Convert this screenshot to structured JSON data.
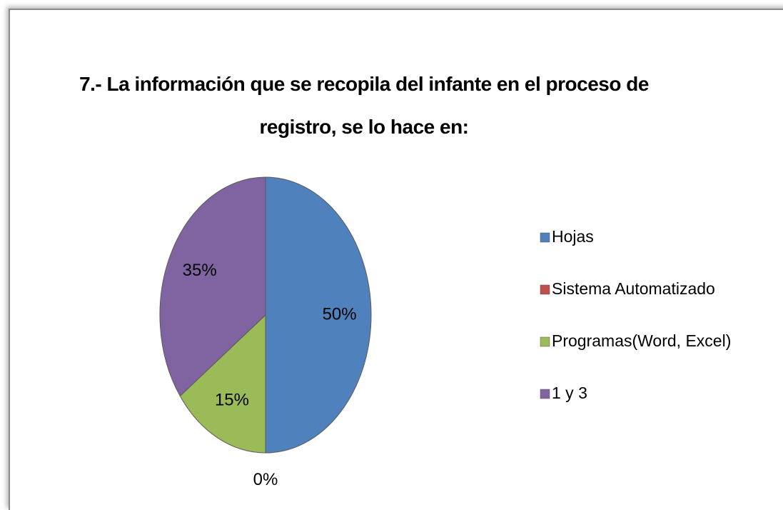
{
  "chart_data": {
    "type": "pie",
    "title": "7.- La información que se recopila del infante en el proceso de registro, se lo hace en:",
    "categories": [
      "Hojas",
      "Sistema Automatizado",
      "Programas(Word, Excel)",
      "1 y 3"
    ],
    "values": [
      50,
      0,
      15,
      35
    ],
    "value_labels": [
      "50%",
      "0%",
      "15%",
      "35%"
    ],
    "colors": [
      "#4f81bd",
      "#c0504d",
      "#9bbb59",
      "#8064a2"
    ],
    "legend": "right"
  }
}
